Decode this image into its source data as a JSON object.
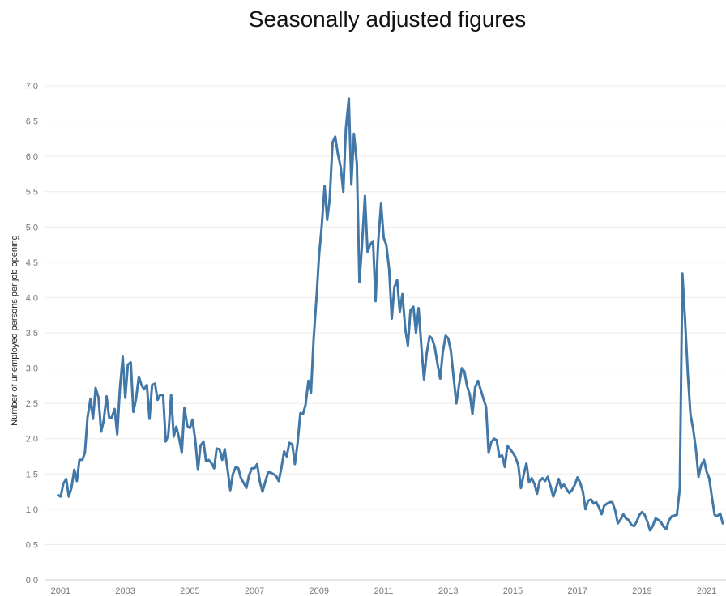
{
  "chart_data": {
    "type": "line",
    "title": "Seasonally adjusted figures",
    "xlabel": "",
    "ylabel": "Number of unemployed persons per job opening",
    "xlim": [
      2000.5,
      2021.6
    ],
    "ylim": [
      0,
      7
    ],
    "x_ticks": [
      "2001",
      "2003",
      "2005",
      "2007",
      "2009",
      "2011",
      "2013",
      "2015",
      "2017",
      "2019",
      "2021"
    ],
    "y_ticks": [
      "0.0",
      "0.5",
      "1.0",
      "1.5",
      "2.0",
      "2.5",
      "3.0",
      "3.5",
      "4.0",
      "4.5",
      "5.0",
      "5.5",
      "6.0",
      "6.5",
      "7.0"
    ],
    "grid": "horizontal",
    "color": "#4278a8",
    "series": [
      {
        "points": [
          [
            2000.92,
            1.2
          ],
          [
            2001.0,
            1.18
          ],
          [
            2001.08,
            1.36
          ],
          [
            2001.17,
            1.43
          ],
          [
            2001.25,
            1.18
          ],
          [
            2001.33,
            1.3
          ],
          [
            2001.42,
            1.56
          ],
          [
            2001.5,
            1.4
          ],
          [
            2001.58,
            1.7
          ],
          [
            2001.67,
            1.7
          ],
          [
            2001.75,
            1.8
          ],
          [
            2001.83,
            2.3
          ],
          [
            2001.92,
            2.56
          ],
          [
            2002.0,
            2.28
          ],
          [
            2002.08,
            2.72
          ],
          [
            2002.17,
            2.58
          ],
          [
            2002.25,
            2.1
          ],
          [
            2002.33,
            2.25
          ],
          [
            2002.42,
            2.6
          ],
          [
            2002.5,
            2.3
          ],
          [
            2002.58,
            2.3
          ],
          [
            2002.67,
            2.42
          ],
          [
            2002.75,
            2.06
          ],
          [
            2002.83,
            2.7
          ],
          [
            2002.92,
            3.16
          ],
          [
            2003.0,
            2.58
          ],
          [
            2003.08,
            3.05
          ],
          [
            2003.17,
            3.08
          ],
          [
            2003.25,
            2.38
          ],
          [
            2003.33,
            2.56
          ],
          [
            2003.42,
            2.88
          ],
          [
            2003.5,
            2.76
          ],
          [
            2003.58,
            2.7
          ],
          [
            2003.67,
            2.76
          ],
          [
            2003.75,
            2.28
          ],
          [
            2003.83,
            2.76
          ],
          [
            2003.92,
            2.78
          ],
          [
            2004.0,
            2.55
          ],
          [
            2004.08,
            2.62
          ],
          [
            2004.17,
            2.62
          ],
          [
            2004.25,
            1.96
          ],
          [
            2004.33,
            2.05
          ],
          [
            2004.42,
            2.62
          ],
          [
            2004.5,
            2.03
          ],
          [
            2004.58,
            2.17
          ],
          [
            2004.67,
            2.0
          ],
          [
            2004.75,
            1.8
          ],
          [
            2004.83,
            2.44
          ],
          [
            2004.92,
            2.18
          ],
          [
            2005.0,
            2.15
          ],
          [
            2005.08,
            2.27
          ],
          [
            2005.17,
            1.97
          ],
          [
            2005.25,
            1.56
          ],
          [
            2005.33,
            1.9
          ],
          [
            2005.42,
            1.96
          ],
          [
            2005.5,
            1.68
          ],
          [
            2005.58,
            1.7
          ],
          [
            2005.67,
            1.65
          ],
          [
            2005.75,
            1.58
          ],
          [
            2005.83,
            1.86
          ],
          [
            2005.92,
            1.85
          ],
          [
            2006.0,
            1.7
          ],
          [
            2006.08,
            1.85
          ],
          [
            2006.17,
            1.55
          ],
          [
            2006.25,
            1.27
          ],
          [
            2006.33,
            1.5
          ],
          [
            2006.42,
            1.6
          ],
          [
            2006.5,
            1.58
          ],
          [
            2006.58,
            1.44
          ],
          [
            2006.67,
            1.37
          ],
          [
            2006.75,
            1.3
          ],
          [
            2006.83,
            1.48
          ],
          [
            2006.92,
            1.58
          ],
          [
            2007.0,
            1.58
          ],
          [
            2007.08,
            1.64
          ],
          [
            2007.17,
            1.38
          ],
          [
            2007.25,
            1.25
          ],
          [
            2007.33,
            1.38
          ],
          [
            2007.42,
            1.52
          ],
          [
            2007.5,
            1.52
          ],
          [
            2007.58,
            1.5
          ],
          [
            2007.67,
            1.47
          ],
          [
            2007.75,
            1.4
          ],
          [
            2007.83,
            1.58
          ],
          [
            2007.92,
            1.82
          ],
          [
            2008.0,
            1.75
          ],
          [
            2008.08,
            1.94
          ],
          [
            2008.17,
            1.92
          ],
          [
            2008.25,
            1.64
          ],
          [
            2008.33,
            1.92
          ],
          [
            2008.42,
            2.36
          ],
          [
            2008.5,
            2.35
          ],
          [
            2008.58,
            2.48
          ],
          [
            2008.67,
            2.82
          ],
          [
            2008.75,
            2.65
          ],
          [
            2008.83,
            3.4
          ],
          [
            2008.92,
            4.0
          ],
          [
            2009.0,
            4.6
          ],
          [
            2009.08,
            5.0
          ],
          [
            2009.17,
            5.58
          ],
          [
            2009.25,
            5.1
          ],
          [
            2009.33,
            5.4
          ],
          [
            2009.42,
            6.2
          ],
          [
            2009.5,
            6.28
          ],
          [
            2009.58,
            6.04
          ],
          [
            2009.67,
            5.85
          ],
          [
            2009.75,
            5.5
          ],
          [
            2009.83,
            6.4
          ],
          [
            2009.92,
            6.82
          ],
          [
            2010.0,
            5.6
          ],
          [
            2010.08,
            6.32
          ],
          [
            2010.17,
            5.9
          ],
          [
            2010.25,
            4.22
          ],
          [
            2010.33,
            4.75
          ],
          [
            2010.42,
            5.44
          ],
          [
            2010.5,
            4.65
          ],
          [
            2010.58,
            4.75
          ],
          [
            2010.67,
            4.8
          ],
          [
            2010.75,
            3.95
          ],
          [
            2010.83,
            4.78
          ],
          [
            2010.92,
            5.33
          ],
          [
            2011.0,
            4.85
          ],
          [
            2011.08,
            4.75
          ],
          [
            2011.17,
            4.4
          ],
          [
            2011.25,
            3.7
          ],
          [
            2011.33,
            4.15
          ],
          [
            2011.42,
            4.25
          ],
          [
            2011.5,
            3.8
          ],
          [
            2011.58,
            4.05
          ],
          [
            2011.67,
            3.55
          ],
          [
            2011.75,
            3.32
          ],
          [
            2011.83,
            3.82
          ],
          [
            2011.92,
            3.87
          ],
          [
            2012.0,
            3.5
          ],
          [
            2012.08,
            3.85
          ],
          [
            2012.17,
            3.3
          ],
          [
            2012.25,
            2.84
          ],
          [
            2012.33,
            3.2
          ],
          [
            2012.42,
            3.45
          ],
          [
            2012.5,
            3.42
          ],
          [
            2012.58,
            3.3
          ],
          [
            2012.67,
            3.05
          ],
          [
            2012.75,
            2.85
          ],
          [
            2012.83,
            3.22
          ],
          [
            2012.92,
            3.46
          ],
          [
            2013.0,
            3.42
          ],
          [
            2013.08,
            3.25
          ],
          [
            2013.17,
            2.85
          ],
          [
            2013.25,
            2.5
          ],
          [
            2013.33,
            2.75
          ],
          [
            2013.42,
            3.0
          ],
          [
            2013.5,
            2.95
          ],
          [
            2013.58,
            2.75
          ],
          [
            2013.67,
            2.62
          ],
          [
            2013.75,
            2.35
          ],
          [
            2013.83,
            2.72
          ],
          [
            2013.92,
            2.82
          ],
          [
            2014.0,
            2.7
          ],
          [
            2014.08,
            2.58
          ],
          [
            2014.17,
            2.45
          ],
          [
            2014.25,
            1.8
          ],
          [
            2014.33,
            1.95
          ],
          [
            2014.42,
            2.0
          ],
          [
            2014.5,
            1.98
          ],
          [
            2014.58,
            1.75
          ],
          [
            2014.67,
            1.76
          ],
          [
            2014.75,
            1.6
          ],
          [
            2014.83,
            1.9
          ],
          [
            2014.92,
            1.85
          ],
          [
            2015.0,
            1.8
          ],
          [
            2015.08,
            1.74
          ],
          [
            2015.17,
            1.62
          ],
          [
            2015.25,
            1.3
          ],
          [
            2015.33,
            1.48
          ],
          [
            2015.42,
            1.65
          ],
          [
            2015.5,
            1.38
          ],
          [
            2015.58,
            1.44
          ],
          [
            2015.67,
            1.36
          ],
          [
            2015.75,
            1.22
          ],
          [
            2015.83,
            1.4
          ],
          [
            2015.92,
            1.44
          ],
          [
            2016.0,
            1.4
          ],
          [
            2016.08,
            1.46
          ],
          [
            2016.17,
            1.32
          ],
          [
            2016.25,
            1.18
          ],
          [
            2016.33,
            1.28
          ],
          [
            2016.42,
            1.43
          ],
          [
            2016.5,
            1.3
          ],
          [
            2016.58,
            1.35
          ],
          [
            2016.67,
            1.28
          ],
          [
            2016.75,
            1.23
          ],
          [
            2016.83,
            1.27
          ],
          [
            2016.92,
            1.35
          ],
          [
            2017.0,
            1.45
          ],
          [
            2017.08,
            1.38
          ],
          [
            2017.17,
            1.25
          ],
          [
            2017.25,
            1.0
          ],
          [
            2017.33,
            1.12
          ],
          [
            2017.42,
            1.14
          ],
          [
            2017.5,
            1.08
          ],
          [
            2017.58,
            1.1
          ],
          [
            2017.67,
            1.02
          ],
          [
            2017.75,
            0.93
          ],
          [
            2017.83,
            1.05
          ],
          [
            2017.92,
            1.08
          ],
          [
            2018.0,
            1.1
          ],
          [
            2018.08,
            1.1
          ],
          [
            2018.17,
            0.98
          ],
          [
            2018.25,
            0.8
          ],
          [
            2018.33,
            0.85
          ],
          [
            2018.42,
            0.93
          ],
          [
            2018.5,
            0.87
          ],
          [
            2018.58,
            0.85
          ],
          [
            2018.67,
            0.78
          ],
          [
            2018.75,
            0.76
          ],
          [
            2018.83,
            0.82
          ],
          [
            2018.92,
            0.92
          ],
          [
            2019.0,
            0.96
          ],
          [
            2019.08,
            0.92
          ],
          [
            2019.17,
            0.82
          ],
          [
            2019.25,
            0.7
          ],
          [
            2019.33,
            0.76
          ],
          [
            2019.42,
            0.87
          ],
          [
            2019.5,
            0.85
          ],
          [
            2019.58,
            0.82
          ],
          [
            2019.67,
            0.75
          ],
          [
            2019.75,
            0.72
          ],
          [
            2019.83,
            0.84
          ],
          [
            2019.92,
            0.9
          ],
          [
            2020.0,
            0.91
          ],
          [
            2020.08,
            0.92
          ],
          [
            2020.17,
            1.3
          ],
          [
            2020.25,
            4.34
          ],
          [
            2020.33,
            3.7
          ],
          [
            2020.42,
            2.9
          ],
          [
            2020.5,
            2.34
          ],
          [
            2020.58,
            2.15
          ],
          [
            2020.67,
            1.85
          ],
          [
            2020.75,
            1.46
          ],
          [
            2020.83,
            1.62
          ],
          [
            2020.92,
            1.7
          ],
          [
            2021.0,
            1.53
          ],
          [
            2021.08,
            1.44
          ],
          [
            2021.17,
            1.15
          ],
          [
            2021.25,
            0.92
          ],
          [
            2021.33,
            0.9
          ],
          [
            2021.42,
            0.94
          ],
          [
            2021.5,
            0.8
          ]
        ]
      }
    ]
  }
}
